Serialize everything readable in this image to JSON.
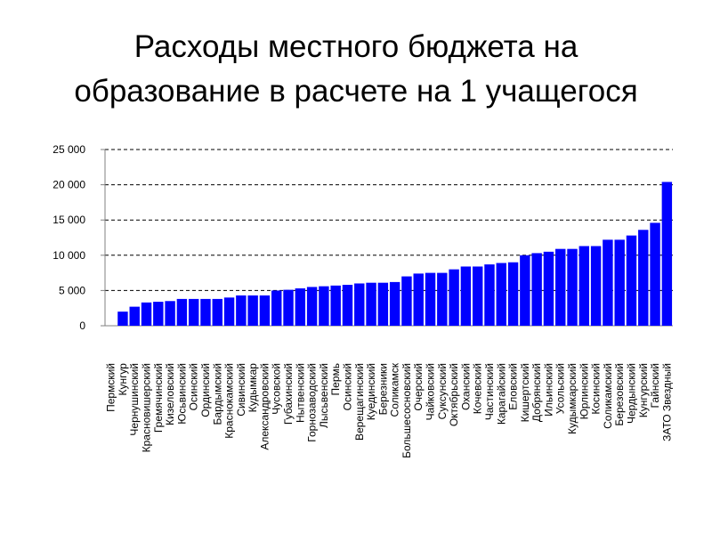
{
  "title": {
    "line1": "Расходы местного бюджета на",
    "line2": "образование в расчете на 1 учащегося"
  },
  "colors": {
    "bar": "#0000FF",
    "gridline": "#000000",
    "axis": "#808080"
  },
  "chart_data": {
    "type": "bar",
    "title": "",
    "xlabel": "",
    "ylabel": "",
    "ylim": [
      0,
      25000
    ],
    "yticks": [
      0,
      5000,
      10000,
      15000,
      20000,
      25000
    ],
    "ytick_labels": [
      "0",
      "5 000",
      "10 000",
      "15 000",
      "20 000",
      "25 000"
    ],
    "grid": "dashed horizontal",
    "categories": [
      "Пермский",
      "Кунгур",
      "Чернушинский",
      "Красновишерский",
      "Гремячинский",
      "Кизеловский",
      "Юсьвинский",
      "Осинский",
      "Ординский",
      "Бардымский",
      "Краснокамский",
      "Сивинский",
      "Кудымкар",
      "Александровский",
      "Чусовской",
      "Губахинский",
      "Нытвенский",
      "Горнозаводский",
      "Лысьвенский",
      "Пермь",
      "Осинский",
      "Верещагинский",
      "Куединский",
      "Березники",
      "Соликамск",
      "Большесосновский",
      "Очерский",
      "Чайковский",
      "Суксунский",
      "Октябрьский",
      "Оханский",
      "Кочевский",
      "Частинский",
      "Карагайский",
      "Еловский",
      "Кишертский",
      "Добрянский",
      "Ильинский",
      "Усольский",
      "Кудымкарский",
      "Юрлинский",
      "Косинский",
      "Соликамский",
      "Березовский",
      "Чердынский",
      "Кунгурский",
      "Гайнский",
      "ЗАТО Звездный"
    ],
    "values": [
      0,
      2000,
      2700,
      3300,
      3400,
      3500,
      3800,
      3800,
      3800,
      3800,
      4000,
      4300,
      4300,
      4300,
      5000,
      5100,
      5300,
      5500,
      5600,
      5700,
      5800,
      6000,
      6100,
      6100,
      6200,
      7000,
      7400,
      7500,
      7500,
      8000,
      8400,
      8400,
      8700,
      8900,
      9000,
      10000,
      10300,
      10500,
      10900,
      10900,
      11300,
      11300,
      12200,
      12200,
      12800,
      13600,
      14600,
      20400
    ]
  }
}
